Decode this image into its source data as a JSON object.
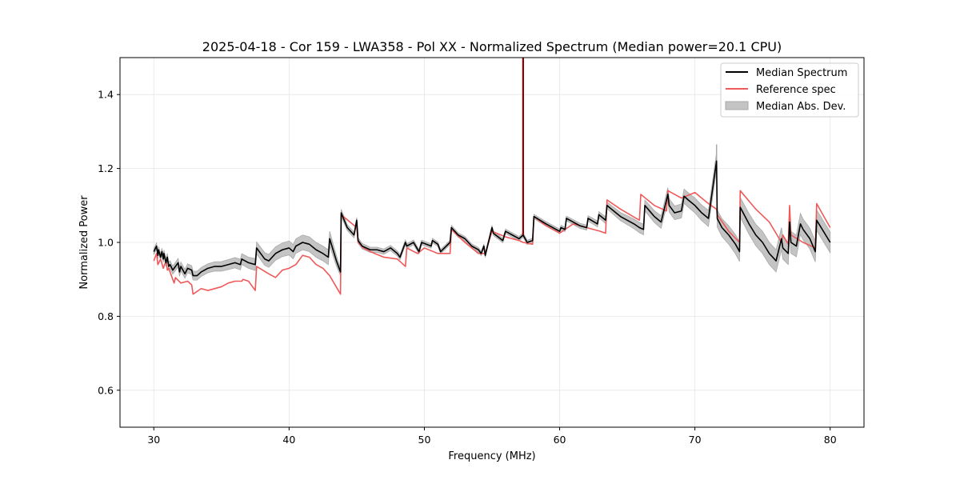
{
  "chart_data": {
    "type": "line",
    "title": "2025-04-18 - Cor 159 - LWA358 - Pol XX - Normalized Spectrum (Median power=20.1 CPU)",
    "xlabel": "Frequency (MHz)",
    "ylabel": "Normalized Power",
    "xlim": [
      27.5,
      82.5
    ],
    "ylim": [
      0.5,
      1.5
    ],
    "x_ticks": [
      30,
      40,
      50,
      60,
      70,
      80
    ],
    "y_ticks": [
      0.6,
      0.8,
      1.0,
      1.2,
      1.4
    ],
    "x_tick_labels": [
      "30",
      "40",
      "50",
      "60",
      "70",
      "80"
    ],
    "y_tick_labels": [
      "0.6",
      "0.8",
      "1.0",
      "1.2",
      "1.4"
    ],
    "grid": true,
    "legend_position": "top-right",
    "legend": [
      "Median Spectrum",
      "Reference spec",
      "Median Abs. Dev."
    ],
    "colors": {
      "median": "#000000",
      "reference": "#ee5a5a",
      "mad_fill": "#c4c4c4",
      "mad_edge": "#a8a8a8",
      "spike": "#8b0000"
    },
    "series": [
      {
        "name": "Median Spectrum",
        "x": [
          30.0,
          30.2,
          30.3,
          30.35,
          30.5,
          30.6,
          30.7,
          30.75,
          30.9,
          31.0,
          31.1,
          31.2,
          31.4,
          31.6,
          31.8,
          31.9,
          32.0,
          32.3,
          32.5,
          32.8,
          32.9,
          33.2,
          33.5,
          34.0,
          34.5,
          35.0,
          35.5,
          36.0,
          36.4,
          36.5,
          37.0,
          37.5,
          37.6,
          38.0,
          38.2,
          38.5,
          39.0,
          39.5,
          40.0,
          40.3,
          40.5,
          41.0,
          41.5,
          42.0,
          42.5,
          42.9,
          43.0,
          43.5,
          43.8,
          43.85,
          44.3,
          44.8,
          45.0,
          45.1,
          45.4,
          46.0,
          46.5,
          47.0,
          47.5,
          48.0,
          48.2,
          48.6,
          48.7,
          49.2,
          49.6,
          49.8,
          50.5,
          50.6,
          51.0,
          51.2,
          51.9,
          52.0,
          52.5,
          53.0,
          53.5,
          54.0,
          54.2,
          54.4,
          54.5,
          55.0,
          55.1,
          55.8,
          56.0,
          56.5,
          57.0,
          57.3,
          57.6,
          58.0,
          58.1,
          59.0,
          60.0,
          60.1,
          60.4,
          60.5,
          61.0,
          61.5,
          62.0,
          62.1,
          62.8,
          62.9,
          63.4,
          63.5,
          64.0,
          64.5,
          65.0,
          65.5,
          65.9,
          66.2,
          66.3,
          67.0,
          67.5,
          68.0,
          68.1,
          68.5,
          69.0,
          69.2,
          69.5,
          70.0,
          70.5,
          71.0,
          71.6,
          71.65,
          72.0,
          72.5,
          73.0,
          73.3,
          73.35,
          74.0,
          74.5,
          75.0,
          75.5,
          76.0,
          76.4,
          76.5,
          76.9,
          77.0,
          77.1,
          77.5,
          77.8,
          78.0,
          78.5,
          78.9,
          79.0,
          79.5,
          80.0
        ],
        "values": [
          0.975,
          0.99,
          0.965,
          0.98,
          0.96,
          0.975,
          0.955,
          0.97,
          0.945,
          0.96,
          0.935,
          0.94,
          0.925,
          0.935,
          0.945,
          0.92,
          0.935,
          0.915,
          0.93,
          0.925,
          0.91,
          0.91,
          0.92,
          0.93,
          0.935,
          0.935,
          0.94,
          0.945,
          0.94,
          0.955,
          0.945,
          0.94,
          0.985,
          0.965,
          0.955,
          0.95,
          0.97,
          0.98,
          0.985,
          0.975,
          0.99,
          1.0,
          0.995,
          0.98,
          0.97,
          0.96,
          1.01,
          0.95,
          0.92,
          1.08,
          1.04,
          1.02,
          1.06,
          1.005,
          0.99,
          0.98,
          0.98,
          0.975,
          0.985,
          0.97,
          0.96,
          1.0,
          0.99,
          1.0,
          0.975,
          1.0,
          0.99,
          1.005,
          0.995,
          0.975,
          1.0,
          1.04,
          1.02,
          1.01,
          0.99,
          0.98,
          0.97,
          0.99,
          0.965,
          1.04,
          1.025,
          1.005,
          1.03,
          1.02,
          1.01,
          1.02,
          1.0,
          1.005,
          1.07,
          1.05,
          1.03,
          1.04,
          1.035,
          1.065,
          1.055,
          1.045,
          1.04,
          1.065,
          1.05,
          1.075,
          1.06,
          1.1,
          1.085,
          1.07,
          1.06,
          1.05,
          1.04,
          1.035,
          1.1,
          1.07,
          1.055,
          1.13,
          1.1,
          1.08,
          1.085,
          1.125,
          1.115,
          1.1,
          1.08,
          1.065,
          1.22,
          1.065,
          1.04,
          1.02,
          0.995,
          0.975,
          1.095,
          1.05,
          1.02,
          1.0,
          0.97,
          0.95,
          1.01,
          0.985,
          0.97,
          1.055,
          1.0,
          0.99,
          1.05,
          1.035,
          1.01,
          0.975,
          1.06,
          1.03,
          1.0
        ],
        "spike": {
          "x": 57.3,
          "y_to": 1.5
        }
      },
      {
        "name": "Reference spec",
        "x": [
          30.0,
          30.2,
          30.3,
          30.5,
          30.7,
          30.9,
          31.0,
          31.1,
          31.5,
          31.6,
          32.0,
          32.5,
          32.8,
          32.9,
          33.5,
          34.0,
          35.0,
          35.5,
          36.0,
          36.5,
          36.6,
          37.0,
          37.5,
          37.6,
          38.5,
          39.0,
          39.5,
          40.0,
          40.5,
          41.0,
          41.5,
          42.0,
          42.5,
          43.0,
          43.8,
          43.85,
          45.0,
          45.1,
          45.5,
          46.0,
          47.0,
          48.0,
          48.6,
          48.7,
          49.5,
          50.0,
          51.0,
          51.9,
          52.0,
          53.0,
          54.0,
          54.5,
          55.0,
          56.0,
          57.0,
          57.3,
          58.0,
          58.1,
          59.0,
          60.0,
          61.0,
          62.0,
          63.0,
          63.4,
          63.5,
          64.5,
          65.9,
          66.0,
          67.0,
          67.9,
          68.0,
          69.0,
          70.0,
          71.0,
          71.6,
          71.65,
          72.5,
          73.3,
          73.35,
          74.5,
          75.5,
          76.4,
          76.5,
          76.9,
          77.0,
          77.1,
          78.0,
          78.9,
          79.0,
          80.0
        ],
        "values": [
          0.95,
          0.97,
          0.94,
          0.955,
          0.93,
          0.95,
          0.925,
          0.93,
          0.89,
          0.905,
          0.89,
          0.895,
          0.885,
          0.86,
          0.875,
          0.87,
          0.88,
          0.89,
          0.895,
          0.895,
          0.9,
          0.895,
          0.87,
          0.935,
          0.915,
          0.905,
          0.925,
          0.93,
          0.94,
          0.965,
          0.96,
          0.94,
          0.93,
          0.91,
          0.86,
          1.075,
          1.04,
          1.0,
          0.985,
          0.975,
          0.96,
          0.955,
          0.935,
          0.985,
          0.97,
          0.985,
          0.97,
          0.97,
          1.035,
          1.0,
          0.97,
          0.97,
          1.03,
          1.015,
          1.005,
          1.0,
          0.995,
          1.07,
          1.045,
          1.025,
          1.05,
          1.04,
          1.03,
          1.025,
          1.115,
          1.09,
          1.06,
          1.13,
          1.1,
          1.085,
          1.14,
          1.12,
          1.135,
          1.105,
          1.09,
          1.075,
          1.03,
          1.0,
          1.14,
          1.09,
          1.055,
          1.0,
          1.02,
          0.995,
          1.1,
          1.02,
          1.0,
          0.985,
          1.105,
          1.04
        ],
        "spike": {
          "x": 57.3,
          "y_to": 1.5
        }
      },
      {
        "name": "Median Abs. Dev.",
        "x": [
          30.0,
          31.0,
          32.0,
          33.0,
          34.0,
          35.0,
          36.0,
          37.0,
          38.0,
          39.0,
          40.0,
          41.0,
          42.0,
          43.0,
          44.0,
          46.0,
          48.0,
          50.0,
          52.0,
          55.0,
          58.0,
          60.0,
          62.0,
          64.0,
          66.0,
          68.0,
          70.0,
          71.0,
          72.0,
          73.0,
          74.0,
          75.0,
          76.0,
          77.0,
          78.0,
          79.0,
          80.0
        ],
        "values": [
          0.008,
          0.01,
          0.012,
          0.012,
          0.012,
          0.013,
          0.014,
          0.015,
          0.017,
          0.018,
          0.019,
          0.02,
          0.02,
          0.02,
          0.008,
          0.007,
          0.007,
          0.006,
          0.006,
          0.006,
          0.006,
          0.006,
          0.007,
          0.01,
          0.014,
          0.018,
          0.02,
          0.022,
          0.024,
          0.026,
          0.028,
          0.03,
          0.03,
          0.03,
          0.028,
          0.028,
          0.028
        ],
        "spike": {
          "x": 71.6,
          "y_to": 1.265
        }
      }
    ]
  }
}
